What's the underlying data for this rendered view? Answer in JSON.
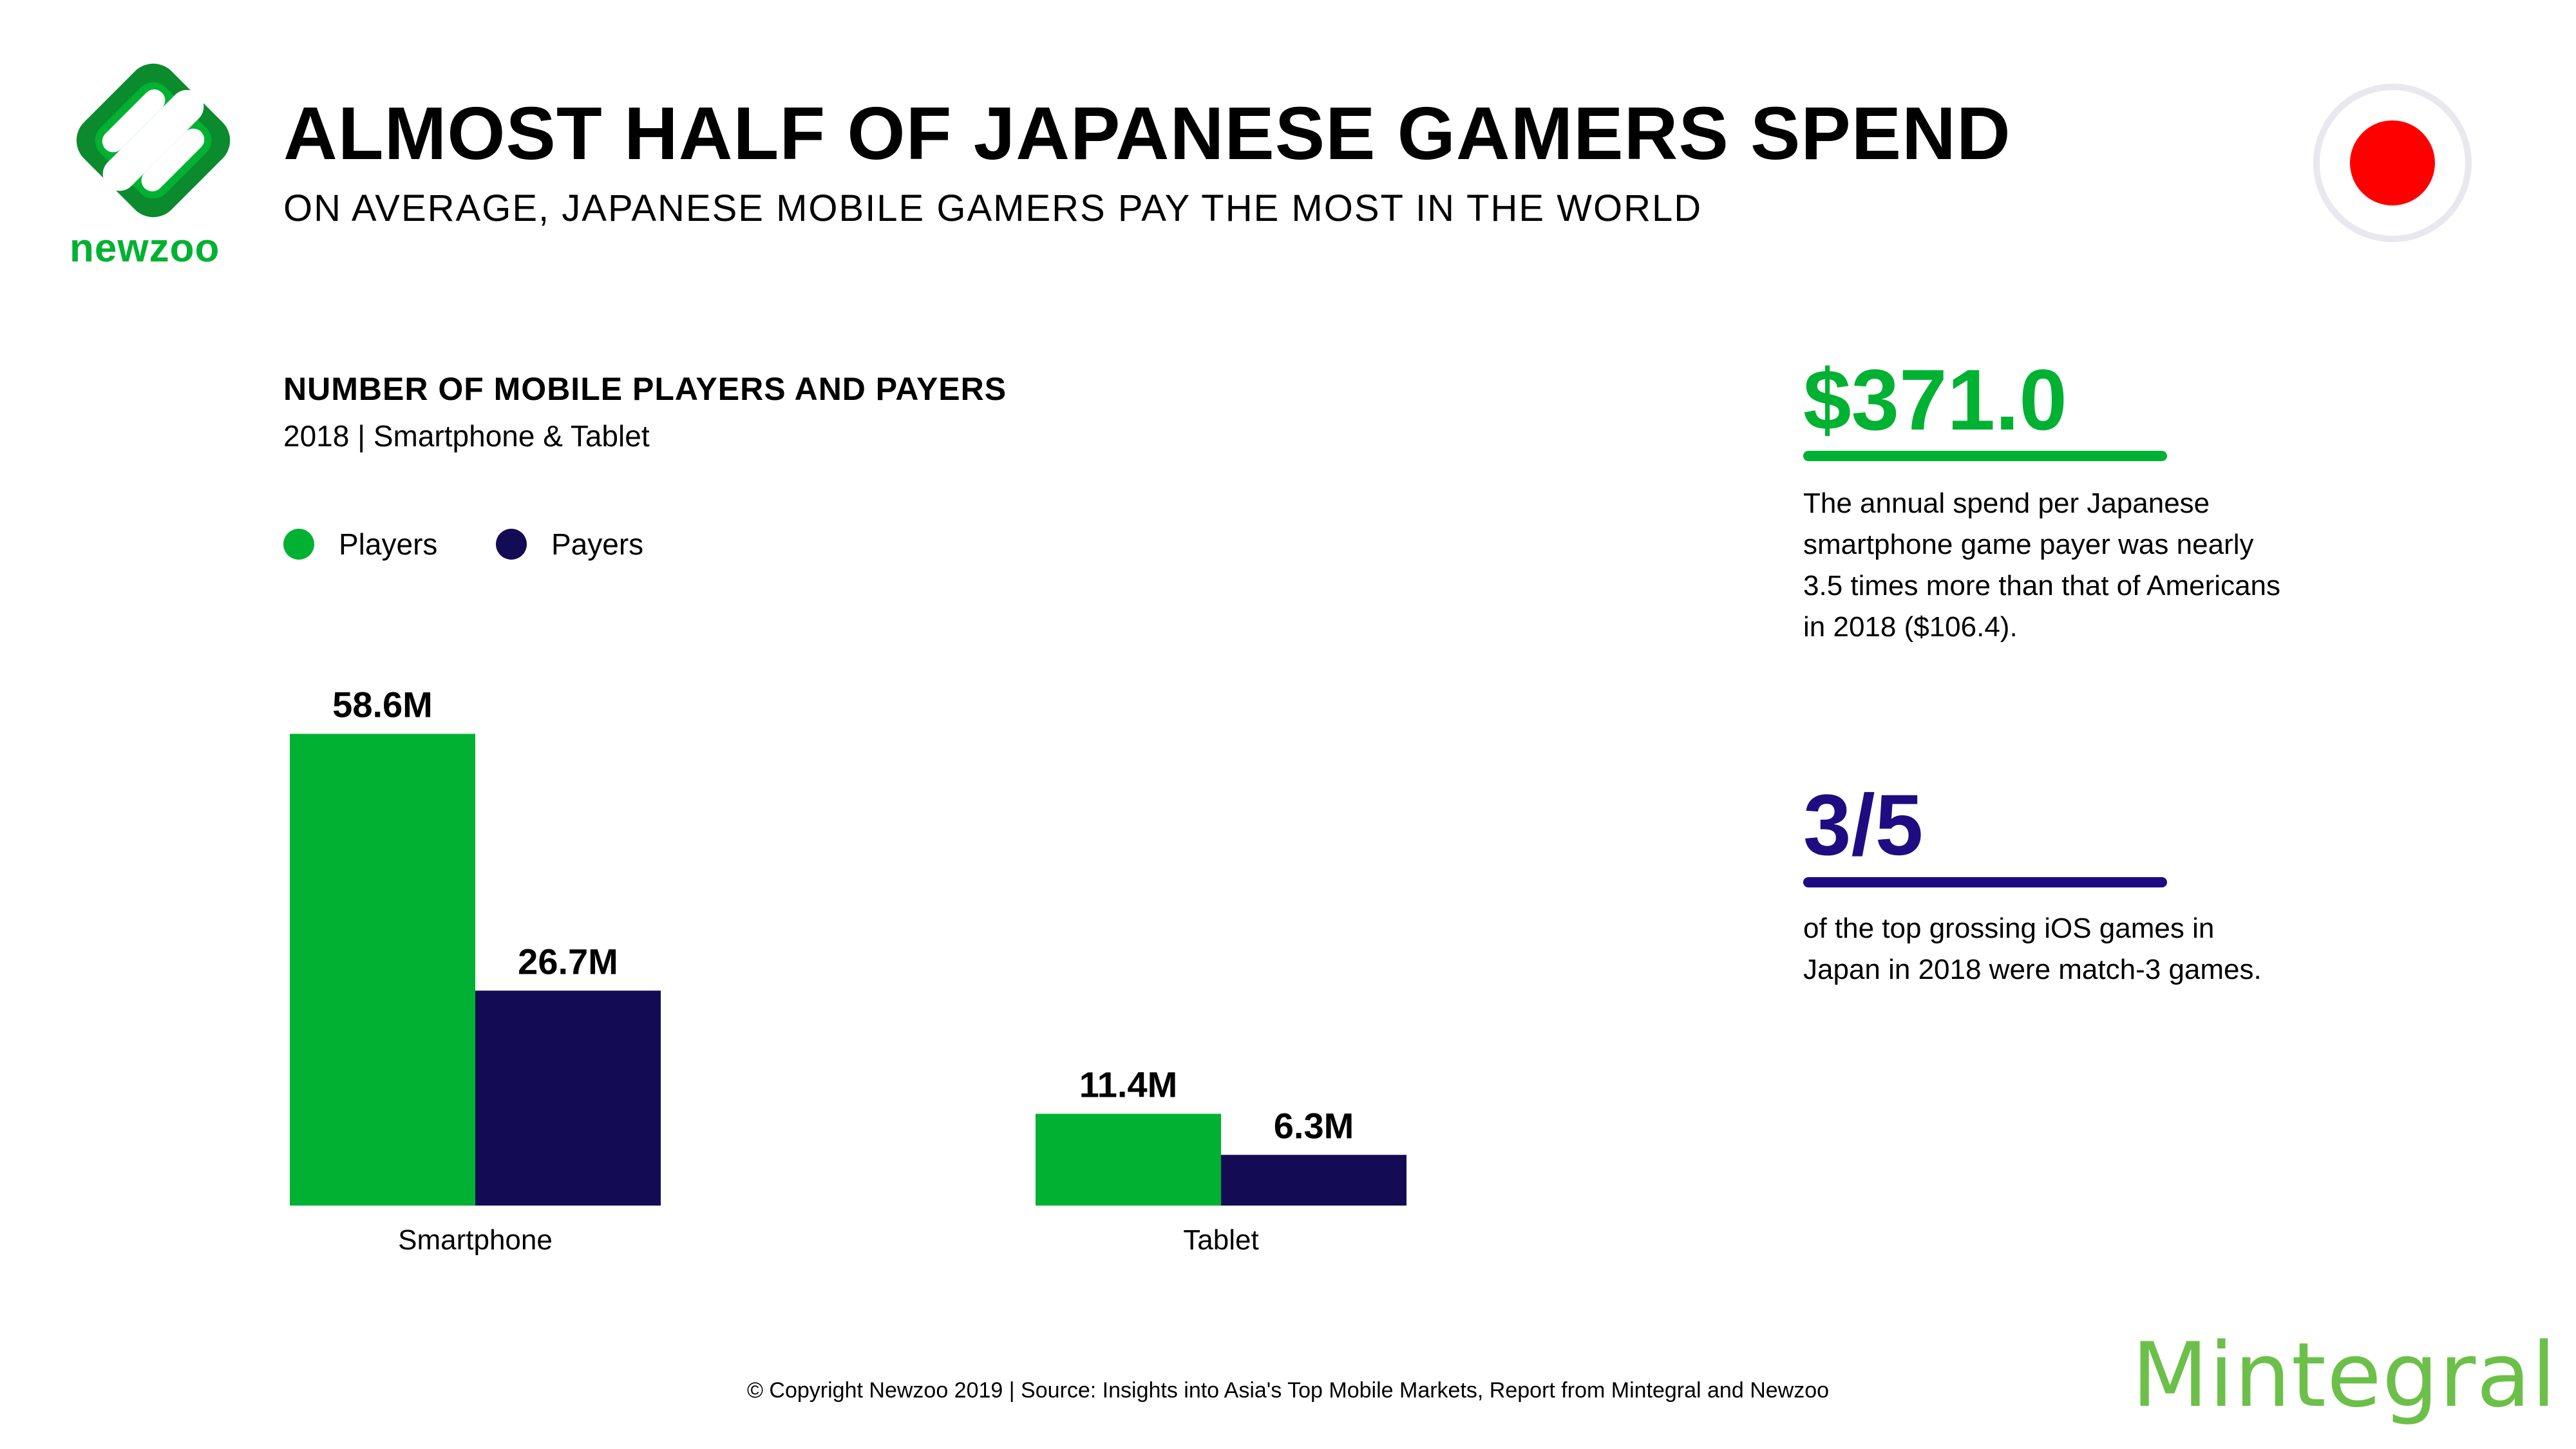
{
  "brand": {
    "logo_text": "newzoo",
    "color": "#00b132"
  },
  "header": {
    "title": "ALMOST HALF OF JAPANESE GAMERS SPEND",
    "subtitle": "ON AVERAGE, JAPANESE MOBILE GAMERS PAY THE MOST IN THE WORLD"
  },
  "flag": {
    "icon": "japan-flag-icon",
    "color": "#ff0000"
  },
  "chart_data": {
    "type": "bar",
    "title": "NUMBER OF MOBILE PLAYERS AND PAYERS",
    "subtitle": "2018 | Smartphone & Tablet",
    "categories": [
      "Smartphone",
      "Tablet"
    ],
    "series": [
      {
        "name": "Players",
        "color": "#00b132",
        "values": [
          58.6,
          11.4
        ],
        "labels": [
          "58.6M",
          "11.4M"
        ]
      },
      {
        "name": "Payers",
        "color": "#140b55",
        "values": [
          26.7,
          6.3
        ],
        "labels": [
          "26.7M",
          "6.3M"
        ]
      }
    ],
    "unit": "M",
    "ylim": [
      0,
      60
    ]
  },
  "stats": [
    {
      "value": "$371.0",
      "color": "#00b132",
      "text": "The annual spend per Japanese smartphone game payer was nearly 3.5 times more than that of Americans in 2018 ($106.4)."
    },
    {
      "value": "3/5",
      "color": "#1f0c82",
      "text": "of the top grossing iOS games in Japan in 2018 were match-3 games."
    }
  ],
  "footer": {
    "copyright": "© Copyright Newzoo 2019 | Source: Insights into Asia's Top Mobile Markets, Report from Mintegral and Newzoo",
    "partner_logo": "Mintegral"
  }
}
